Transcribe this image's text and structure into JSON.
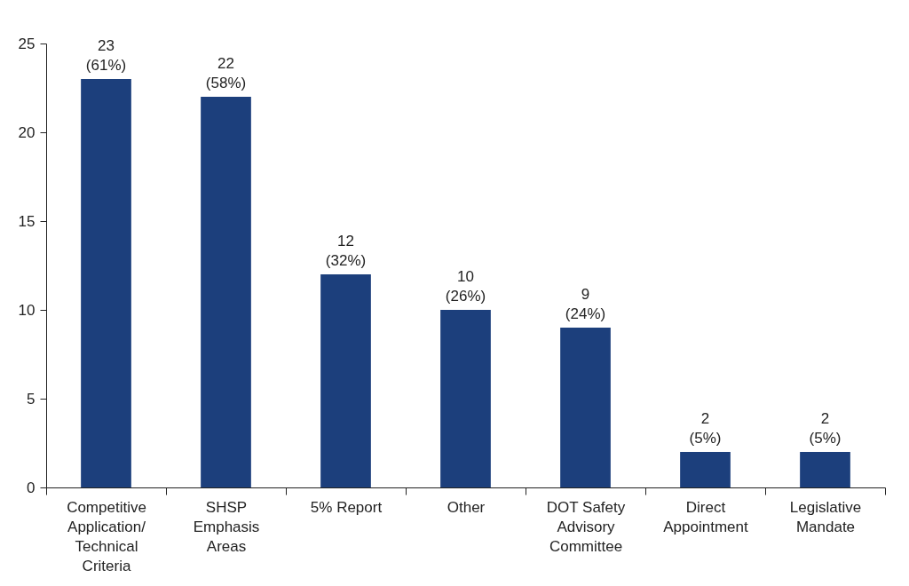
{
  "chart_data": {
    "type": "bar",
    "categories": [
      "Competitive Application/ Technical Criteria",
      "SHSP Emphasis Areas",
      "5% Report",
      "Other",
      "DOT Safety Advisory Committee",
      "Direct Appointment",
      "Legislative Mandate"
    ],
    "values": [
      23,
      22,
      12,
      10,
      9,
      2,
      2
    ],
    "value_labels": [
      "23 (61%)",
      "22 (58%)",
      "12 (32%)",
      "10 (26%)",
      "9 (24%)",
      "2 (5%)",
      "2 (5%)"
    ],
    "color": "#1c3f7c",
    "ylim": [
      0,
      25
    ],
    "yticks": [
      0,
      5,
      10,
      15,
      20,
      25
    ]
  }
}
